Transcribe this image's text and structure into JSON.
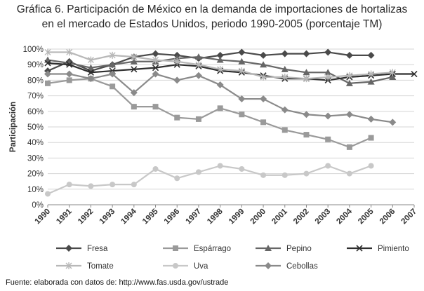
{
  "title": {
    "line1": "Gráfica 6. Participación de México en la demanda de importaciones de hortalizas",
    "line2": "en el mercado de Estados Unidos, periodo 1990-2005 (porcentaje TM)"
  },
  "source": "Fuente: elaborada con datos de: http://www.fas.usda.gov/ustrade",
  "chart_data": {
    "type": "line",
    "title": "Gráfica 6. Participación de México en la demanda de importaciones de hortalizas en el mercado de Estados Unidos, periodo 1990-2005 (porcentaje TM)",
    "xlabel": "",
    "ylabel": "Participación",
    "x": [
      "1990",
      "1991",
      "1992",
      "1993",
      "1994",
      "1995",
      "1996",
      "1997",
      "1998",
      "1999",
      "2000",
      "2001",
      "2002",
      "2003",
      "2004",
      "2005",
      "2006",
      "2007"
    ],
    "ylim": [
      0,
      100
    ],
    "yticks": [
      "0%",
      "10%",
      "20%",
      "30%",
      "40%",
      "50%",
      "60%",
      "70%",
      "80%",
      "90%",
      "100%"
    ],
    "grid": true,
    "legend_position": "bottom",
    "series": [
      {
        "name": "Fresa",
        "color": "#4a4a4a",
        "marker": "diamond",
        "values": [
          86,
          92,
          86,
          90,
          95,
          97,
          96,
          94,
          96,
          98,
          96,
          97,
          97,
          98,
          96,
          96,
          null,
          null
        ]
      },
      {
        "name": "Espárrago",
        "color": "#9a9a9a",
        "marker": "square",
        "values": [
          78,
          80,
          81,
          76,
          63,
          63,
          56,
          55,
          62,
          58,
          53,
          48,
          45,
          42,
          37,
          43,
          null,
          null
        ]
      },
      {
        "name": "Pepino",
        "color": "#666666",
        "marker": "triangle",
        "values": [
          93,
          91,
          88,
          90,
          92,
          92,
          94,
          95,
          93,
          92,
          90,
          87,
          85,
          85,
          78,
          79,
          82,
          null
        ]
      },
      {
        "name": "Pimiento",
        "color": "#2e2e2e",
        "marker": "x",
        "values": [
          91,
          90,
          85,
          86,
          87,
          88,
          90,
          89,
          86,
          85,
          83,
          81,
          81,
          80,
          82,
          83,
          84,
          84
        ]
      },
      {
        "name": "Tomate",
        "color": "#b8b8b8",
        "marker": "asterisk",
        "values": [
          98,
          98,
          93,
          96,
          95,
          93,
          92,
          90,
          87,
          86,
          82,
          82,
          81,
          82,
          83,
          84,
          85,
          null
        ]
      },
      {
        "name": "Uva",
        "color": "#c8c8c8",
        "marker": "circle",
        "values": [
          7,
          13,
          12,
          13,
          13,
          23,
          17,
          21,
          25,
          23,
          19,
          19,
          20,
          25,
          20,
          25,
          null,
          null
        ]
      },
      {
        "name": "Cebollas",
        "color": "#8a8a8a",
        "marker": "diamond",
        "values": [
          84,
          84,
          81,
          84,
          72,
          84,
          80,
          83,
          77,
          68,
          68,
          61,
          58,
          57,
          58,
          55,
          53,
          null
        ]
      }
    ]
  }
}
